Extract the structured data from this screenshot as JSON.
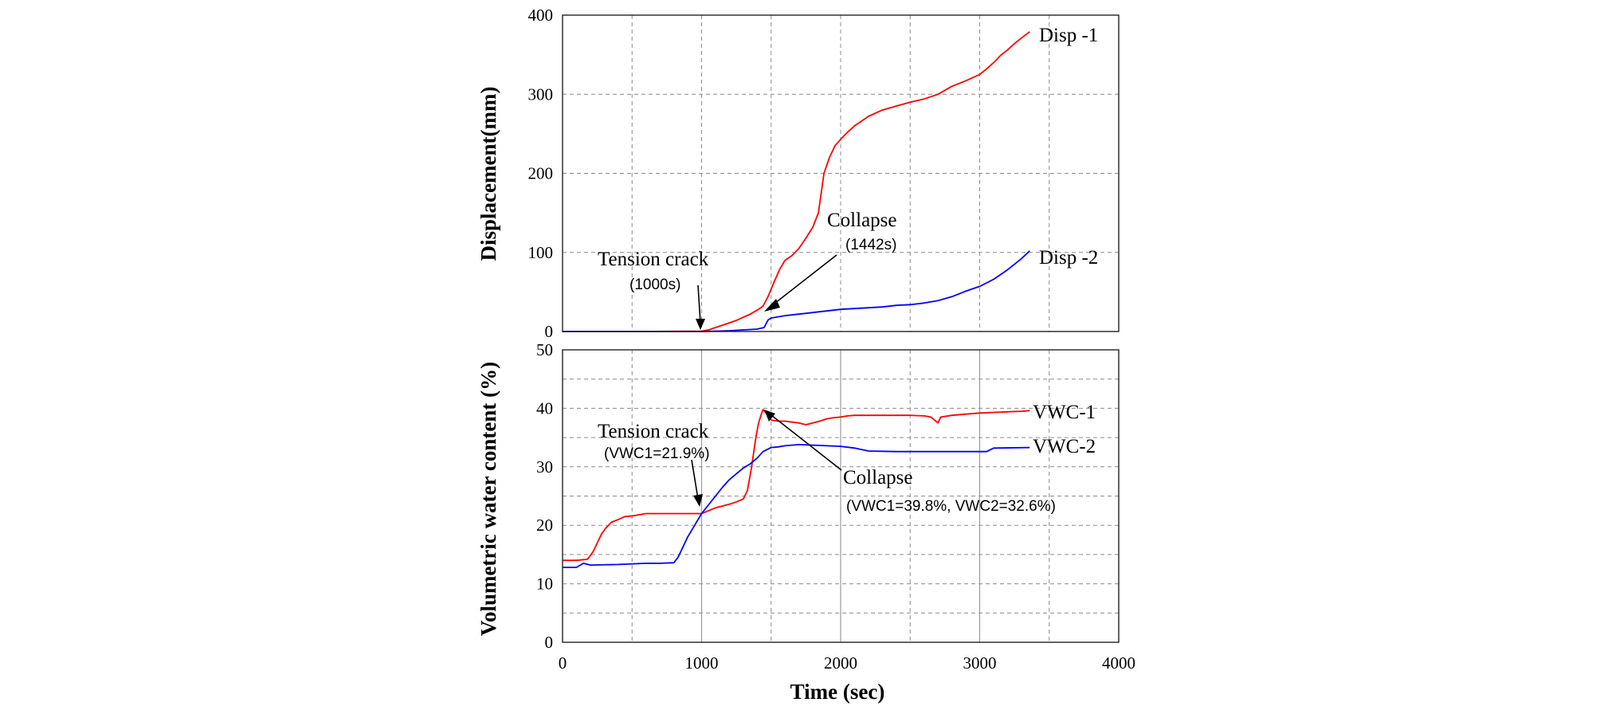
{
  "chart_data": [
    {
      "type": "line",
      "ylabel": "Displacement(mm)",
      "xlim": [
        0,
        4000
      ],
      "ylim": [
        0,
        400
      ],
      "x_ticks": [
        "0",
        "1000",
        "2000",
        "3000",
        "4000"
      ],
      "y_ticks": [
        "0",
        "100",
        "200",
        "300",
        "400"
      ],
      "grid": "dashed",
      "series": [
        {
          "name": "Disp -1",
          "color": "#ff0000",
          "x": [
            0,
            500,
            1000,
            1050,
            1100,
            1150,
            1200,
            1250,
            1300,
            1350,
            1400,
            1442,
            1480,
            1520,
            1560,
            1600,
            1650,
            1700,
            1750,
            1800,
            1840,
            1880,
            1920,
            1960,
            2000,
            2050,
            2100,
            2150,
            2200,
            2300,
            2400,
            2500,
            2600,
            2700,
            2800,
            2900,
            3000,
            3050,
            3100,
            3150,
            3200,
            3250,
            3300,
            3360
          ],
          "y": [
            0,
            0,
            0.5,
            2,
            5,
            8,
            11,
            14,
            18,
            22,
            27,
            32,
            45,
            62,
            78,
            90,
            96,
            105,
            118,
            132,
            150,
            200,
            220,
            235,
            243,
            252,
            260,
            266,
            272,
            280,
            285,
            290,
            294,
            300,
            310,
            317,
            325,
            332,
            340,
            349,
            356,
            364,
            371,
            379
          ]
        },
        {
          "name": "Disp -2",
          "color": "#0000ff",
          "x": [
            0,
            500,
            1000,
            1100,
            1200,
            1300,
            1400,
            1450,
            1470,
            1480,
            1500,
            1600,
            1700,
            1800,
            1900,
            2000,
            2100,
            2200,
            2300,
            2400,
            2500,
            2600,
            2700,
            2800,
            2900,
            3000,
            3100,
            3200,
            3300,
            3360
          ],
          "y": [
            0,
            0,
            0,
            0.5,
            1,
            2,
            3,
            5,
            12,
            15,
            17,
            20,
            22,
            24,
            26,
            28,
            29,
            30,
            31,
            33,
            34,
            36,
            39,
            44,
            51,
            57,
            66,
            78,
            92,
            102
          ]
        }
      ],
      "annotations": [
        {
          "text": "Tension crack",
          "sub": "(1000s)",
          "x": 1000,
          "y": 0
        },
        {
          "text": "Collapse",
          "sub": "(1442s)",
          "x": 1442,
          "y": 28
        }
      ]
    },
    {
      "type": "line",
      "xlabel": "Time (sec)",
      "ylabel": "Volumetric water content (%)",
      "xlim": [
        0,
        4000
      ],
      "ylim": [
        0,
        50
      ],
      "x_ticks": [
        "0",
        "1000",
        "2000",
        "3000",
        "4000"
      ],
      "y_ticks": [
        "0",
        "10",
        "20",
        "30",
        "40",
        "50"
      ],
      "grid": "solid-vertical, dashed-horizontal",
      "series": [
        {
          "name": "VWC-1",
          "color": "#ff0000",
          "x": [
            0,
            100,
            180,
            220,
            250,
            280,
            310,
            350,
            400,
            450,
            500,
            550,
            600,
            800,
            1000,
            1050,
            1100,
            1150,
            1200,
            1250,
            1300,
            1330,
            1360,
            1390,
            1410,
            1430,
            1442,
            1470,
            1500,
            1550,
            1600,
            1700,
            1750,
            1800,
            1850,
            1900,
            1950,
            2000,
            2050,
            2100,
            2200,
            2300,
            2400,
            2500,
            2600,
            2650,
            2700,
            2720,
            2800,
            2900,
            3000,
            3100,
            3200,
            3300,
            3360
          ],
          "y": [
            14,
            14,
            14.2,
            15.5,
            17,
            18.5,
            19.5,
            20.5,
            21,
            21.5,
            21.6,
            21.8,
            22,
            22,
            22,
            22.5,
            23,
            23.3,
            23.6,
            24,
            24.5,
            26,
            30,
            35,
            37.5,
            39,
            39.8,
            39,
            38,
            37.8,
            37.8,
            37.5,
            37.2,
            37.5,
            37.8,
            38.2,
            38.4,
            38.5,
            38.7,
            38.8,
            38.8,
            38.8,
            38.8,
            38.8,
            38.7,
            38.5,
            37.5,
            38.5,
            38.8,
            39,
            39.2,
            39.3,
            39.4,
            39.5,
            39.6
          ]
        },
        {
          "name": "VWC-2",
          "color": "#0000ff",
          "x": [
            0,
            100,
            150,
            200,
            400,
            600,
            700,
            800,
            830,
            860,
            900,
            950,
            1000,
            1050,
            1100,
            1150,
            1200,
            1250,
            1300,
            1350,
            1400,
            1442,
            1500,
            1550,
            1600,
            1700,
            1800,
            1900,
            2000,
            2100,
            2200,
            2400,
            2600,
            2800,
            3000,
            3050,
            3100,
            3360
          ],
          "y": [
            12.8,
            12.8,
            13.5,
            13.2,
            13.3,
            13.5,
            13.5,
            13.6,
            14.5,
            16,
            18,
            20,
            22,
            23.5,
            25,
            26.5,
            27.8,
            28.8,
            29.8,
            30.5,
            31.5,
            32.6,
            33.3,
            33.4,
            33.6,
            33.8,
            33.7,
            33.6,
            33.5,
            33.2,
            32.7,
            32.6,
            32.6,
            32.6,
            32.6,
            32.6,
            33.2,
            33.3
          ]
        }
      ],
      "annotations": [
        {
          "text": "Tension crack",
          "sub": "(VWC1=21.9%)",
          "x": 1000,
          "y": 21.9
        },
        {
          "text": "Collapse",
          "sub": "(VWC1=39.8%, VWC2=32.6%)",
          "x": 1442,
          "y": 39.8
        }
      ]
    }
  ]
}
